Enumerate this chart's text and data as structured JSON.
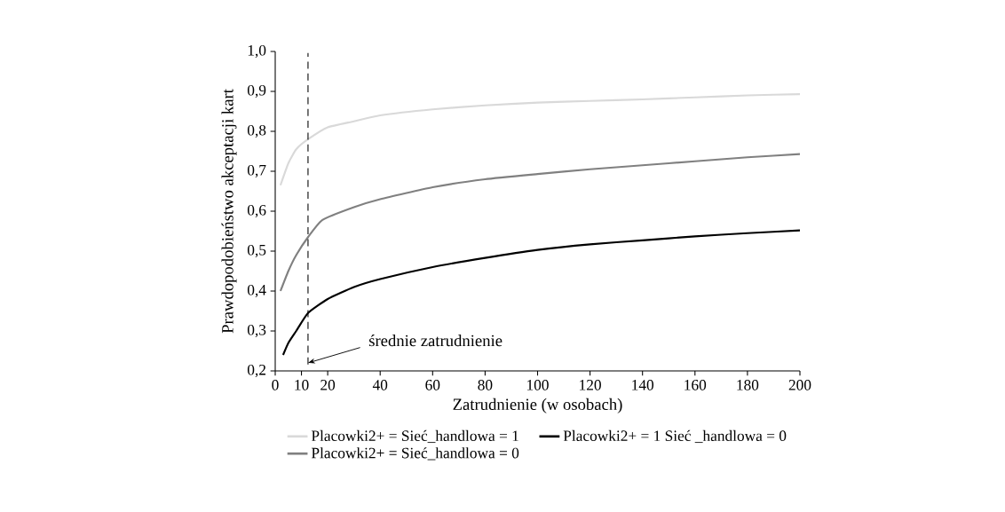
{
  "chart_data": {
    "type": "line",
    "xlabel": "Zatrudnienie (w osobach)",
    "ylabel": "Prawdopodobieństwo akceptacji kart",
    "xlim": [
      0,
      200
    ],
    "xticks": [
      0,
      10,
      20,
      40,
      60,
      80,
      100,
      120,
      140,
      160,
      180,
      200
    ],
    "ylim": [
      0.2,
      1.0
    ],
    "yticks": [
      {
        "value": 0.2,
        "label": "0,2"
      },
      {
        "value": 0.3,
        "label": "0,3"
      },
      {
        "value": 0.4,
        "label": "0,4"
      },
      {
        "value": 0.5,
        "label": "0,5"
      },
      {
        "value": 0.6,
        "label": "0,6"
      },
      {
        "value": 0.7,
        "label": "0,7"
      },
      {
        "value": 0.8,
        "label": "0,8"
      },
      {
        "value": 0.9,
        "label": "0,9"
      },
      {
        "value": 1.0,
        "label": "1,0"
      }
    ],
    "series": [
      {
        "name": "Placowki2+ = Sieć_handlowa = 1",
        "color": "#d9d9d9",
        "x": [
          2,
          5,
          8,
          12.5,
          20,
          30,
          40,
          60,
          80,
          100,
          120,
          140,
          160,
          180,
          200
        ],
        "values": [
          0.665,
          0.72,
          0.755,
          0.78,
          0.81,
          0.825,
          0.84,
          0.855,
          0.865,
          0.872,
          0.876,
          0.88,
          0.885,
          0.89,
          0.893
        ]
      },
      {
        "name": "Placowki2+ = 1  Sieć _handlowa = 0",
        "color": "#000000",
        "x": [
          3,
          5,
          8,
          12.5,
          20,
          30,
          40,
          60,
          80,
          100,
          120,
          140,
          160,
          180,
          200
        ],
        "values": [
          0.24,
          0.27,
          0.3,
          0.345,
          0.38,
          0.41,
          0.43,
          0.46,
          0.483,
          0.503,
          0.517,
          0.527,
          0.537,
          0.545,
          0.552
        ]
      },
      {
        "name": "Placowki2+ = Sieć_handlowa = 0",
        "color": "#808080",
        "x": [
          2,
          5,
          8,
          12.5,
          18,
          30,
          40,
          60,
          80,
          100,
          120,
          140,
          160,
          180,
          200
        ],
        "values": [
          0.4,
          0.45,
          0.49,
          0.535,
          0.578,
          0.61,
          0.63,
          0.66,
          0.68,
          0.693,
          0.705,
          0.715,
          0.725,
          0.735,
          0.743
        ]
      }
    ],
    "ref_lines": [
      {
        "axis": "x",
        "value": 12.5,
        "line_style": "dashed",
        "color": "#000000"
      }
    ],
    "annotations": [
      {
        "text": "średnie zatrudnienie",
        "x": 12.5,
        "y": 0.22
      }
    ],
    "legend": "bottom",
    "grid": false,
    "marker": "none",
    "line_style": "solid"
  }
}
